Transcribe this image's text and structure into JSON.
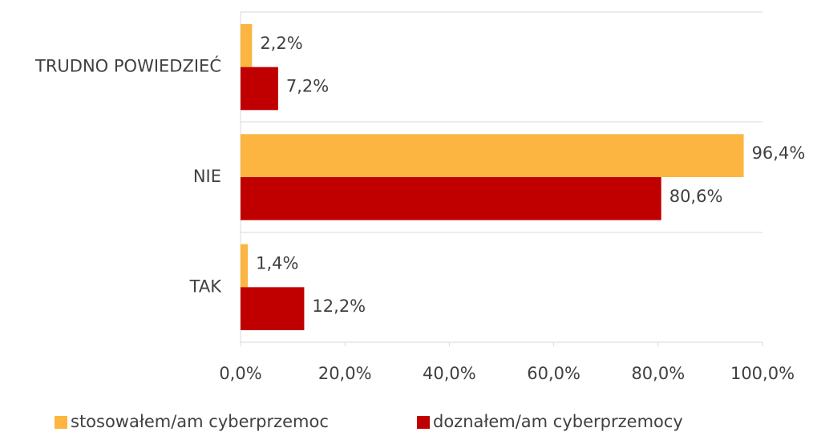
{
  "chart_data": {
    "type": "bar",
    "orientation": "horizontal",
    "categories": [
      "TRUDNO POWIEDZIEĆ",
      "NIE",
      "TAK"
    ],
    "series": [
      {
        "name": "stosowałem/am cyberprzemoc",
        "color": "#FBB540",
        "values": [
          2.2,
          96.4,
          1.4
        ],
        "value_labels": [
          "2,2%",
          "96,4%",
          "1,4%"
        ]
      },
      {
        "name": "doznałem/am cyberprzemocy",
        "color": "#C00000",
        "values": [
          7.2,
          80.6,
          12.2
        ],
        "value_labels": [
          "7,2%",
          "80,6%",
          "12,2%"
        ]
      }
    ],
    "xlim": [
      0,
      100
    ],
    "xticks": [
      {
        "value": 0,
        "label": "0,0%"
      },
      {
        "value": 20,
        "label": "20,0%"
      },
      {
        "value": 40,
        "label": "40,0%"
      },
      {
        "value": 60,
        "label": "60,0%"
      },
      {
        "value": 80,
        "label": "80,0%"
      },
      {
        "value": 100,
        "label": "100,0%"
      }
    ],
    "legend": "bottom"
  }
}
